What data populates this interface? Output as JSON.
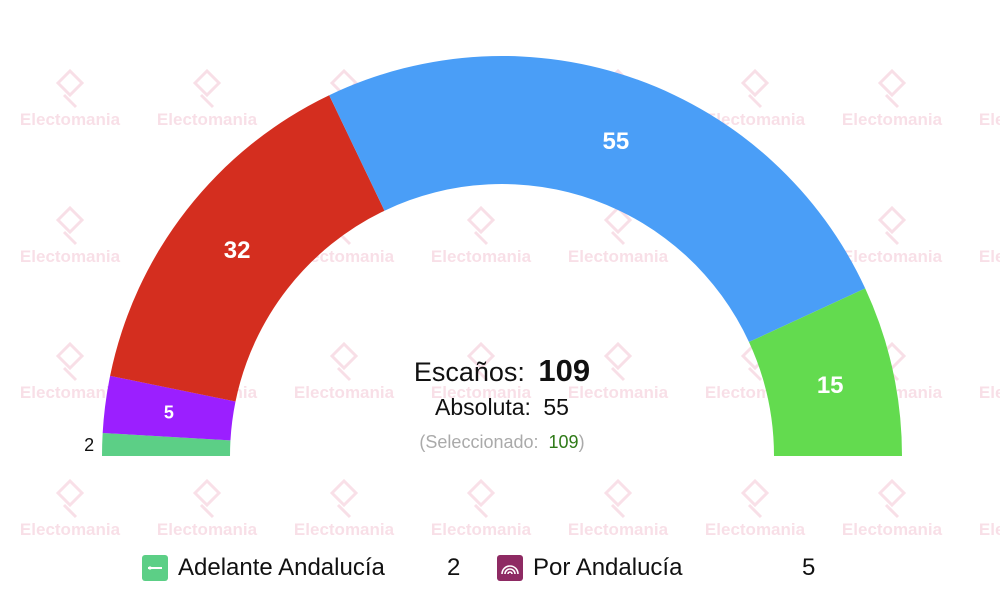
{
  "chart_data": {
    "type": "parliament-semicircle",
    "total_label": "Escaños:",
    "total_value": "109",
    "majority_label": "Absoluta:",
    "majority_value": "55",
    "selected_label": "(Seleccionado:",
    "selected_value": "109",
    "selected_close": ")",
    "watermark": "Electomania",
    "series": [
      {
        "seats": 2,
        "color": "#5ccf86"
      },
      {
        "seats": 5,
        "color": "#9b1fff"
      },
      {
        "seats": 32,
        "color": "#d42e1f"
      },
      {
        "seats": 55,
        "color": "#4a9ef7"
      },
      {
        "seats": 15,
        "color": "#63db4f"
      }
    ]
  },
  "legend": [
    {
      "label": "Adelante Andalucía",
      "seats": "2",
      "color": "#5ccf86",
      "icon": "adelante-andalucia-logo-icon"
    },
    {
      "label": "Por Andalucía",
      "seats": "5",
      "color": "#8e2a63",
      "icon": "por-andalucia-logo-icon"
    }
  ]
}
